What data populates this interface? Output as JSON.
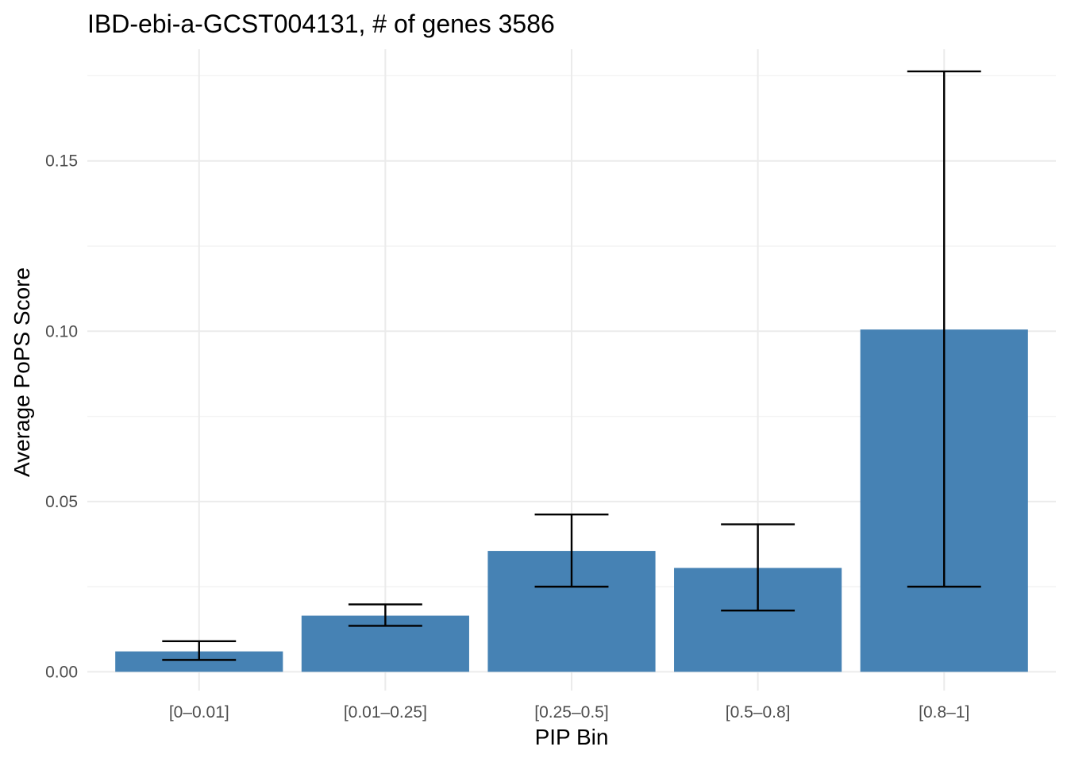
{
  "chart_data": {
    "type": "bar",
    "title": "IBD-ebi-a-GCST004131, # of genes 3586",
    "xlabel": "PIP Bin",
    "ylabel": "Average PoPS Score",
    "categories": [
      "[0–0.01]",
      "[0.01–0.25]",
      "[0.25–0.5]",
      "[0.5–0.8]",
      "[0.8–1]"
    ],
    "values": [
      0.006,
      0.0165,
      0.0355,
      0.0305,
      0.1005
    ],
    "error_low": [
      0.0035,
      0.0135,
      0.025,
      0.018,
      0.025
    ],
    "error_high": [
      0.009,
      0.0198,
      0.0462,
      0.0433,
      0.1763
    ],
    "ylim": [
      -0.0055,
      0.1828
    ],
    "yticks": [
      0.0,
      0.05,
      0.1,
      0.15
    ],
    "ytick_labels": [
      "0.00",
      "0.05",
      "0.10",
      "0.15"
    ],
    "bar_color": "#4682B4",
    "grid": true,
    "legend": "none"
  }
}
